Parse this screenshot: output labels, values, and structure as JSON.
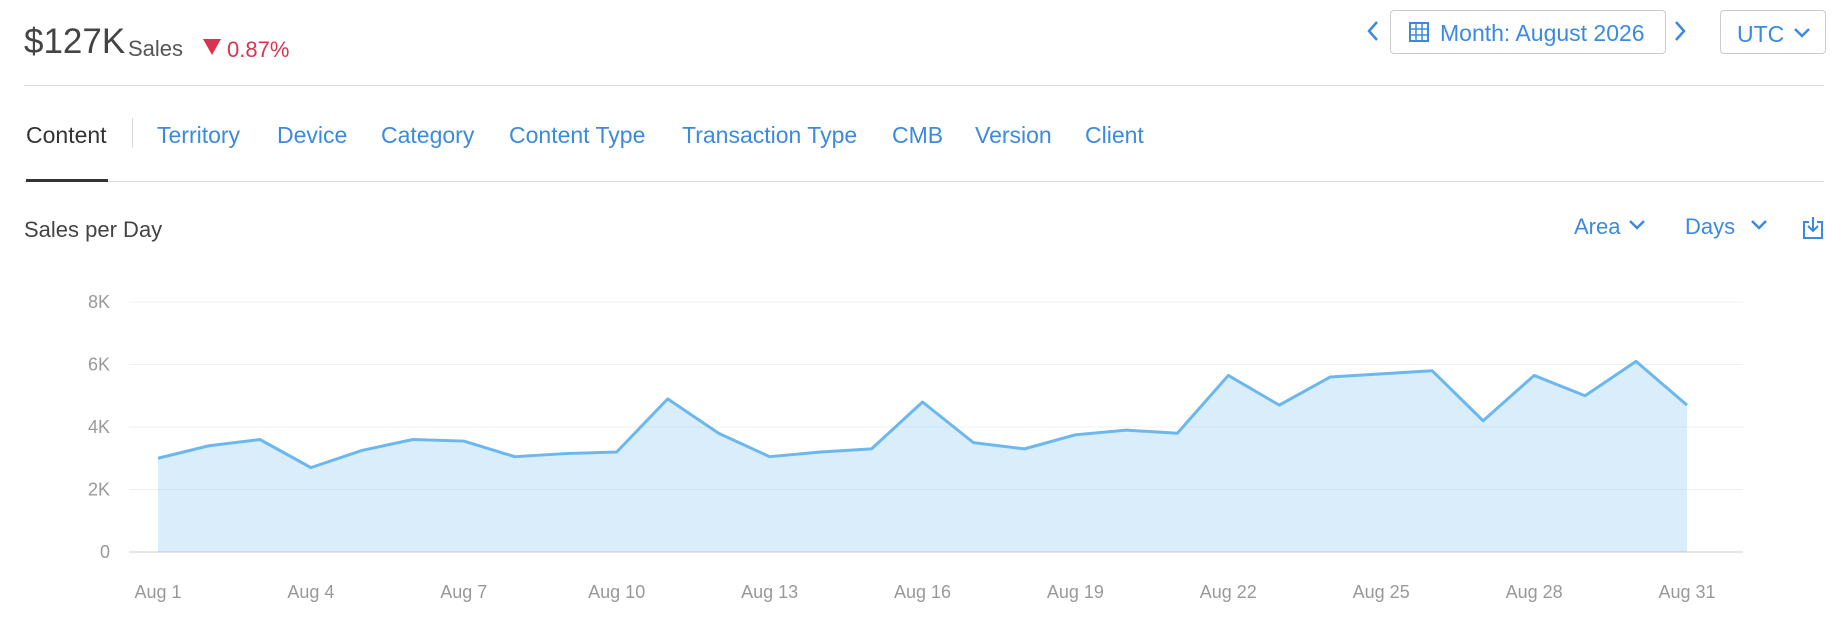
{
  "header": {
    "total": "$127K",
    "total_label": "Sales",
    "change": "0.87%",
    "period": "Month: August 2026",
    "timezone": "UTC"
  },
  "tabs": [
    "Content",
    "Territory",
    "Device",
    "Category",
    "Content Type",
    "Transaction Type",
    "CMB",
    "Version",
    "Client"
  ],
  "controls": {
    "chart_style": "Area",
    "granularity": "Days"
  },
  "chart_data": {
    "type": "area",
    "title": "Sales per Day",
    "categories": [
      "Aug 1",
      null,
      null,
      "Aug 4",
      null,
      null,
      "Aug 7",
      null,
      null,
      "Aug 10",
      null,
      null,
      "Aug 13",
      null,
      null,
      "Aug 16",
      null,
      null,
      "Aug 19",
      null,
      null,
      "Aug 22",
      null,
      null,
      "Aug 25",
      null,
      null,
      "Aug 28",
      null,
      null,
      "Aug 31"
    ],
    "series": [
      {
        "name": "Sales",
        "color": "#6cb8ee",
        "values": [
          3000,
          3400,
          3600,
          2700,
          3250,
          3600,
          3550,
          3050,
          3150,
          3200,
          4900,
          3800,
          3050,
          3200,
          3300,
          4800,
          3500,
          3300,
          3750,
          3900,
          3800,
          5650,
          4700,
          5600,
          5700,
          5800,
          4200,
          5650,
          5000,
          6100,
          4700
        ]
      }
    ],
    "ylim": [
      0,
      8000
    ],
    "yticks": [
      0,
      {
        "value": 2000,
        "label": "2K"
      },
      {
        "value": 4000,
        "label": "4K"
      },
      {
        "value": 6000,
        "label": "6K"
      },
      {
        "value": 8000,
        "label": "8K"
      }
    ],
    "grid": true
  }
}
